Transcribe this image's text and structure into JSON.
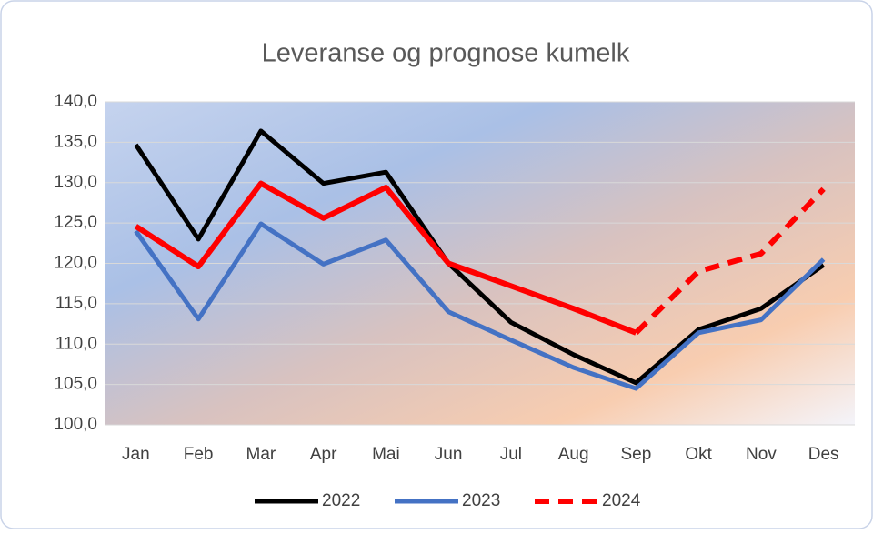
{
  "chart_data": {
    "type": "line",
    "title": "Leveranse og prognose kumelk",
    "categories": [
      "Jan",
      "Feb",
      "Mar",
      "Apr",
      "Mai",
      "Jun",
      "Jul",
      "Aug",
      "Sep",
      "Okt",
      "Nov",
      "Des"
    ],
    "series": [
      {
        "name": "2022",
        "color": "#000000",
        "values": [
          134.7,
          123.0,
          136.4,
          129.9,
          131.3,
          120.0,
          112.7,
          108.7,
          105.2,
          111.8,
          114.4,
          119.8
        ]
      },
      {
        "name": "2023",
        "color": "#4472c4",
        "values": [
          124.0,
          113.1,
          124.9,
          119.9,
          122.9,
          114.0,
          110.5,
          107.1,
          104.5,
          111.4,
          113.0,
          120.5
        ]
      },
      {
        "name": "2024",
        "color": "#ff0000",
        "values": [
          124.6,
          119.6,
          129.9,
          125.6,
          129.4,
          120.0,
          117.2,
          114.4,
          111.4,
          119.0,
          121.2,
          129.2
        ],
        "dash_start_index": 8
      }
    ],
    "ylim": [
      100,
      140
    ],
    "yticks": [
      {
        "value": 100,
        "label": "100,0"
      },
      {
        "value": 105,
        "label": "105,0"
      },
      {
        "value": 110,
        "label": "110,0"
      },
      {
        "value": 115,
        "label": "115,0"
      },
      {
        "value": 120,
        "label": "120,0"
      },
      {
        "value": 125,
        "label": "125,0"
      },
      {
        "value": 130,
        "label": "130,0"
      },
      {
        "value": 135,
        "label": "135,0"
      },
      {
        "value": 140,
        "label": "140,0"
      }
    ],
    "grid": true
  }
}
